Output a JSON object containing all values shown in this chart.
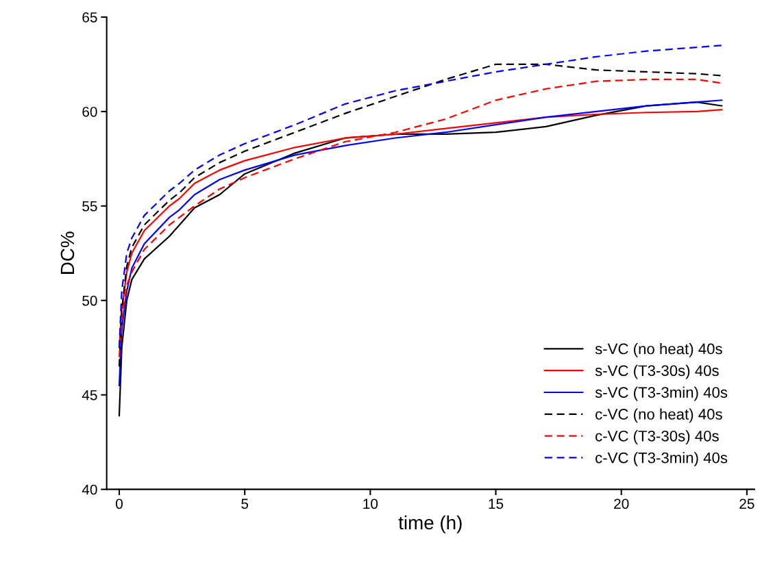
{
  "chart_data": {
    "type": "line",
    "xlabel": "time (h)",
    "ylabel": "DC%",
    "xlim": [
      -0.5,
      25.3
    ],
    "ylim": [
      40,
      65
    ],
    "xticks": [
      0,
      5,
      10,
      15,
      20,
      25
    ],
    "yticks": [
      40,
      45,
      50,
      55,
      60,
      65
    ],
    "grid": false,
    "legend": "bottom right",
    "marker": "none",
    "x": [
      0,
      0.1,
      0.3,
      0.5,
      1,
      2,
      2.4,
      3,
      4,
      5,
      7,
      9,
      11,
      13,
      15,
      17,
      19,
      21,
      23,
      24
    ],
    "series": [
      {
        "name": "s-VC (no heat) 40s",
        "color": "#000000",
        "line_style": "solid",
        "values": [
          43.9,
          47.5,
          50.0,
          51.1,
          52.2,
          53.4,
          54.0,
          54.9,
          55.6,
          56.7,
          57.8,
          58.6,
          58.8,
          58.8,
          58.9,
          59.2,
          59.8,
          60.3,
          60.5,
          60.3
        ]
      },
      {
        "name": "s-VC (T3-30s) 40s",
        "color": "#ff0000",
        "line_style": "solid",
        "values": [
          47.5,
          49.5,
          51.5,
          52.5,
          53.7,
          55.0,
          55.4,
          56.2,
          56.9,
          57.4,
          58.1,
          58.6,
          58.8,
          59.1,
          59.4,
          59.7,
          59.85,
          59.95,
          60.0,
          60.1
        ]
      },
      {
        "name": "s-VC (T3-3min) 40s",
        "color": "#0000ff",
        "line_style": "solid",
        "values": [
          45.5,
          48.5,
          50.5,
          51.7,
          53.0,
          54.4,
          54.8,
          55.6,
          56.4,
          56.9,
          57.7,
          58.2,
          58.6,
          58.9,
          59.3,
          59.7,
          60.0,
          60.3,
          60.5,
          60.6
        ]
      },
      {
        "name": "c-VC (no heat) 40s",
        "color": "#000000",
        "line_style": "dashed",
        "values": [
          46.5,
          49.5,
          51.8,
          52.8,
          54.0,
          55.3,
          55.7,
          56.5,
          57.3,
          57.9,
          58.9,
          59.9,
          60.8,
          61.7,
          62.5,
          62.5,
          62.2,
          62.1,
          62.0,
          61.9
        ]
      },
      {
        "name": "c-VC (T3-30s) 40s",
        "color": "#ff0000",
        "line_style": "dashed",
        "values": [
          47.0,
          49.0,
          50.8,
          51.5,
          52.7,
          54.0,
          54.4,
          55.0,
          55.9,
          56.5,
          57.5,
          58.4,
          58.9,
          59.6,
          60.6,
          61.2,
          61.6,
          61.7,
          61.7,
          61.5
        ]
      },
      {
        "name": "c-VC (T3-3min) 40s",
        "color": "#0000ff",
        "line_style": "dashed",
        "values": [
          47.5,
          50.5,
          52.5,
          53.3,
          54.5,
          55.8,
          56.2,
          56.9,
          57.7,
          58.3,
          59.3,
          60.4,
          61.1,
          61.6,
          62.1,
          62.5,
          62.9,
          63.2,
          63.4,
          63.5
        ]
      }
    ]
  }
}
